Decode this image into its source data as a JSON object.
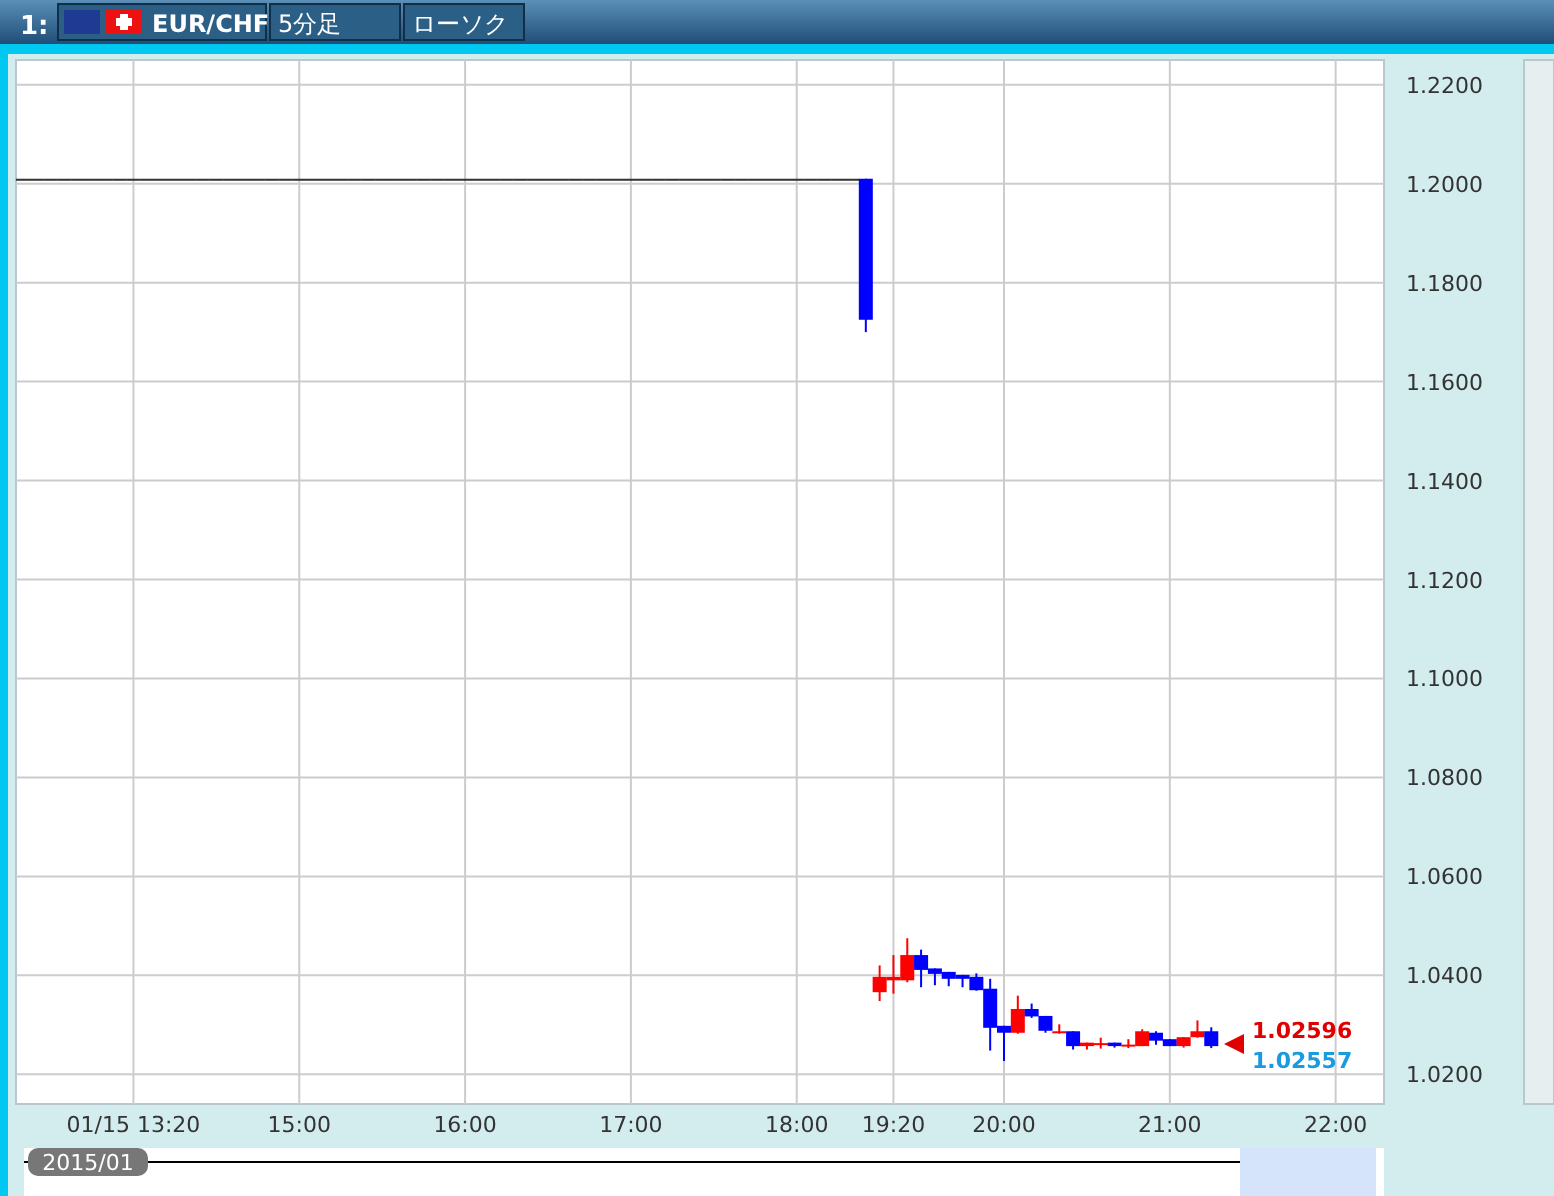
{
  "chart_data": {
    "type": "candlestick",
    "title": "EUR/CHF",
    "annotations": [
      "1:",
      "5分足",
      "ローソク",
      "1.02596",
      "1.02557",
      "2015/01"
    ],
    "categories": [
      null,
      null,
      null,
      null,
      null,
      null,
      null,
      null,
      "01/15 13:20",
      null,
      null,
      null,
      null,
      null,
      null,
      null,
      null,
      null,
      null,
      null,
      "15:00",
      null,
      null,
      null,
      null,
      null,
      null,
      null,
      null,
      null,
      null,
      null,
      "16:00",
      null,
      null,
      null,
      null,
      null,
      null,
      null,
      null,
      null,
      null,
      null,
      "17:00",
      null,
      null,
      null,
      null,
      null,
      null,
      null,
      null,
      null,
      null,
      null,
      "18:00",
      null,
      null,
      null,
      null,
      null,
      null,
      "19:20",
      null,
      null,
      null,
      null,
      null,
      null,
      null,
      "20:00",
      null,
      null,
      null,
      null,
      null,
      null,
      null,
      null,
      null,
      null,
      null,
      "21:00",
      null,
      null,
      null,
      null,
      null,
      null,
      null,
      null,
      null,
      null,
      null,
      "22:00",
      null,
      null,
      null
    ],
    "ohlc": [
      [
        1.201,
        1.201,
        1.201,
        1.201
      ],
      [
        1.201,
        1.201,
        1.201,
        1.201
      ],
      [
        1.201,
        1.201,
        1.201,
        1.201
      ],
      [
        1.201,
        1.201,
        1.201,
        1.201
      ],
      [
        1.201,
        1.201,
        1.201,
        1.201
      ],
      [
        1.201,
        1.201,
        1.201,
        1.201
      ],
      [
        1.201,
        1.201,
        1.201,
        1.201
      ],
      [
        1.201,
        1.201,
        1.201,
        1.201
      ],
      [
        1.201,
        1.201,
        1.201,
        1.201
      ],
      [
        1.201,
        1.201,
        1.201,
        1.201
      ],
      [
        1.201,
        1.201,
        1.201,
        1.201
      ],
      [
        1.201,
        1.201,
        1.201,
        1.201
      ],
      [
        1.201,
        1.201,
        1.201,
        1.201
      ],
      [
        1.201,
        1.201,
        1.201,
        1.201
      ],
      [
        1.201,
        1.201,
        1.201,
        1.201
      ],
      [
        1.201,
        1.201,
        1.201,
        1.201
      ],
      [
        1.201,
        1.201,
        1.201,
        1.201
      ],
      [
        1.201,
        1.201,
        1.201,
        1.201
      ],
      [
        1.201,
        1.201,
        1.201,
        1.201
      ],
      [
        1.201,
        1.201,
        1.201,
        1.201
      ],
      [
        1.201,
        1.201,
        1.201,
        1.201
      ],
      [
        1.201,
        1.201,
        1.201,
        1.201
      ],
      [
        1.201,
        1.201,
        1.201,
        1.201
      ],
      [
        1.201,
        1.201,
        1.201,
        1.201
      ],
      [
        1.201,
        1.201,
        1.201,
        1.201
      ],
      [
        1.201,
        1.201,
        1.201,
        1.201
      ],
      [
        1.201,
        1.201,
        1.201,
        1.201
      ],
      [
        1.201,
        1.201,
        1.201,
        1.201
      ],
      [
        1.201,
        1.201,
        1.201,
        1.201
      ],
      [
        1.201,
        1.201,
        1.201,
        1.201
      ],
      [
        1.201,
        1.201,
        1.201,
        1.201
      ],
      [
        1.201,
        1.201,
        1.201,
        1.201
      ],
      [
        1.201,
        1.201,
        1.201,
        1.201
      ],
      [
        1.201,
        1.201,
        1.201,
        1.201
      ],
      [
        1.201,
        1.201,
        1.201,
        1.201
      ],
      [
        1.201,
        1.201,
        1.201,
        1.201
      ],
      [
        1.201,
        1.201,
        1.201,
        1.201
      ],
      [
        1.201,
        1.201,
        1.201,
        1.201
      ],
      [
        1.201,
        1.201,
        1.201,
        1.201
      ],
      [
        1.201,
        1.201,
        1.201,
        1.201
      ],
      [
        1.201,
        1.201,
        1.201,
        1.201
      ],
      [
        1.201,
        1.201,
        1.201,
        1.201
      ],
      [
        1.201,
        1.201,
        1.201,
        1.201
      ],
      [
        1.201,
        1.201,
        1.201,
        1.201
      ],
      [
        1.201,
        1.201,
        1.201,
        1.201
      ],
      [
        1.201,
        1.201,
        1.201,
        1.201
      ],
      [
        1.201,
        1.201,
        1.201,
        1.201
      ],
      [
        1.201,
        1.201,
        1.201,
        1.201
      ],
      [
        1.201,
        1.201,
        1.201,
        1.201
      ],
      [
        1.201,
        1.201,
        1.201,
        1.201
      ],
      [
        1.201,
        1.201,
        1.201,
        1.201
      ],
      [
        1.201,
        1.201,
        1.201,
        1.201
      ],
      [
        1.201,
        1.201,
        1.201,
        1.201
      ],
      [
        1.201,
        1.201,
        1.201,
        1.201
      ],
      [
        1.201,
        1.201,
        1.201,
        1.201
      ],
      [
        1.201,
        1.201,
        1.201,
        1.201
      ],
      [
        1.201,
        1.201,
        1.201,
        1.201
      ],
      [
        1.201,
        1.201,
        1.201,
        1.201
      ],
      [
        1.201,
        1.201,
        1.201,
        1.201
      ],
      [
        1.201,
        1.201,
        1.201,
        1.201
      ],
      [
        1.201,
        1.201,
        1.201,
        1.201
      ],
      [
        1.201,
        1.201,
        1.17,
        1.1725
      ],
      [
        1.0366,
        1.042,
        1.0348,
        1.0397
      ],
      [
        1.039,
        1.0441,
        1.0363,
        1.0397
      ],
      [
        1.039,
        1.0475,
        1.0386,
        1.0441
      ],
      [
        1.0441,
        1.0452,
        1.0376,
        1.0411
      ],
      [
        1.0414,
        1.0414,
        1.038,
        1.0403
      ],
      [
        1.0407,
        1.0407,
        1.0378,
        1.0393
      ],
      [
        1.0401,
        1.0401,
        1.0376,
        1.0393
      ],
      [
        1.0397,
        1.0404,
        1.0369,
        1.037
      ],
      [
        1.0373,
        1.0393,
        1.0248,
        1.0294
      ],
      [
        1.0298,
        1.0298,
        1.0227,
        1.0284
      ],
      [
        1.0284,
        1.0359,
        1.0282,
        1.0332
      ],
      [
        1.0332,
        1.0343,
        1.0314,
        1.0317
      ],
      [
        1.0318,
        1.0318,
        1.0284,
        1.0288
      ],
      [
        1.0284,
        1.0301,
        1.0282,
        1.0287
      ],
      [
        1.0287,
        1.0287,
        1.025,
        1.0257
      ],
      [
        1.0257,
        1.0264,
        1.025,
        1.0264
      ],
      [
        1.026,
        1.0274,
        1.0252,
        1.0263
      ],
      [
        1.0264,
        1.0264,
        1.0254,
        1.0257
      ],
      [
        1.0258,
        1.0271,
        1.0253,
        1.026
      ],
      [
        1.0257,
        1.0291,
        1.0257,
        1.0287
      ],
      [
        1.0284,
        1.0287,
        1.026,
        1.0268
      ],
      [
        1.0271,
        1.0271,
        1.0257,
        1.0257
      ],
      [
        1.0257,
        1.0275,
        1.0254,
        1.0275
      ],
      [
        1.0275,
        1.0309,
        1.0274,
        1.0287
      ],
      [
        1.0287,
        1.0295,
        1.0253,
        1.0257
      ],
      null,
      null,
      null,
      null,
      null,
      null,
      null,
      null,
      null,
      null,
      null,
      null
    ],
    "ylim": [
      1.014,
      1.225
    ],
    "yticks": [
      {
        "value": 1.02,
        "label": "1.0200"
      },
      {
        "value": 1.04,
        "label": "1.0400"
      },
      {
        "value": 1.06,
        "label": "1.0600"
      },
      {
        "value": 1.08,
        "label": "1.0800"
      },
      {
        "value": 1.1,
        "label": "1.1000"
      },
      {
        "value": 1.12,
        "label": "1.1200"
      },
      {
        "value": 1.14,
        "label": "1.1400"
      },
      {
        "value": 1.16,
        "label": "1.1600"
      },
      {
        "value": 1.18,
        "label": "1.1800"
      },
      {
        "value": 1.2,
        "label": "1.2000"
      },
      {
        "value": 1.22,
        "label": "1.2200"
      }
    ],
    "grid": true
  }
}
